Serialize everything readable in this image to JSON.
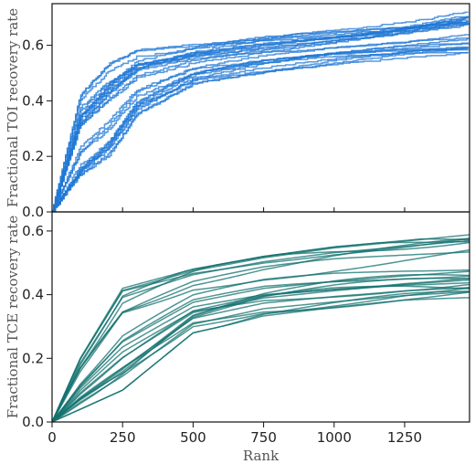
{
  "chart_data": [
    {
      "type": "line",
      "panel": "top",
      "style": "step",
      "ylabel": "Fractional TOI recovery rate",
      "xlabel": "",
      "xlim": [
        0,
        1480
      ],
      "ylim": [
        0,
        0.75
      ],
      "x_ticks": [
        0,
        250,
        500,
        750,
        1000,
        1250
      ],
      "x_tick_labels": [],
      "y_ticks": [
        0.0,
        0.2,
        0.4,
        0.6
      ],
      "y_tick_labels": [
        "0.0",
        "0.2",
        "0.4",
        "0.6"
      ],
      "line_color": "#1f77d4",
      "grid": false,
      "series_count": 25,
      "series_envelope": {
        "x": [
          0,
          100,
          200,
          300,
          500,
          750,
          1000,
          1250,
          1480
        ],
        "low": [
          0,
          0.12,
          0.2,
          0.35,
          0.46,
          0.5,
          0.53,
          0.55,
          0.56
        ],
        "high": [
          0,
          0.42,
          0.53,
          0.58,
          0.6,
          0.63,
          0.65,
          0.68,
          0.72
        ]
      }
    },
    {
      "type": "line",
      "panel": "bottom",
      "style": "smooth",
      "ylabel": "Fractional TCE recovery rate",
      "xlabel": "Rank",
      "xlim": [
        0,
        1480
      ],
      "ylim": [
        0,
        0.66
      ],
      "x_ticks": [
        0,
        250,
        500,
        750,
        1000,
        1250
      ],
      "x_tick_labels": [
        "0",
        "250",
        "500",
        "750",
        "1000",
        "1250"
      ],
      "y_ticks": [
        0.0,
        0.2,
        0.4,
        0.6
      ],
      "y_tick_labels": [
        "0.0",
        "0.2",
        "0.4",
        "0.6"
      ],
      "line_color": "#13716f",
      "grid": false,
      "series_count": 25,
      "series_envelope": {
        "x": [
          0,
          100,
          250,
          500,
          750,
          1000,
          1250,
          1480
        ],
        "low": [
          0,
          0.04,
          0.1,
          0.28,
          0.33,
          0.35,
          0.37,
          0.38
        ],
        "high": [
          0,
          0.2,
          0.42,
          0.48,
          0.52,
          0.55,
          0.57,
          0.59
        ]
      }
    }
  ]
}
